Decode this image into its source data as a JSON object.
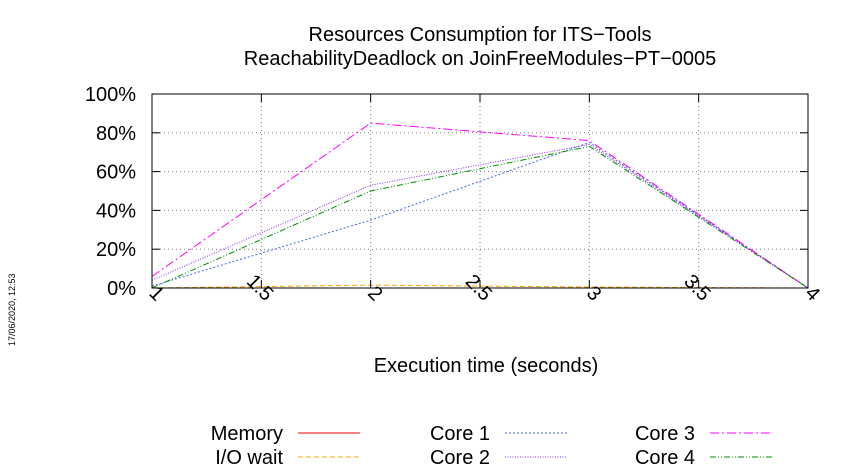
{
  "chart_data": {
    "type": "line",
    "title": [
      "Resources Consumption for ITS−Tools",
      "ReachabilityDeadlock on JoinFreeModules−PT−0005"
    ],
    "xlabel": "Execution time (seconds)",
    "ylabel": "",
    "xlim": [
      1,
      4
    ],
    "ylim": [
      0,
      100
    ],
    "x_ticks": [
      "1",
      "1.5",
      "2",
      "2.5",
      "3",
      "3.5",
      "4"
    ],
    "y_ticks": [
      "0%",
      "20%",
      "40%",
      "60%",
      "80%",
      "100%"
    ],
    "grid": true,
    "legend_position": "bottom",
    "series": [
      {
        "name": "Memory",
        "color": "#ff0000",
        "dash": "solid",
        "x": [
          1,
          2,
          3,
          4
        ],
        "values": [
          0,
          0,
          0,
          0
        ]
      },
      {
        "name": "I/O wait",
        "color": "#ffa500",
        "dash": "dashed",
        "x": [
          1,
          2,
          3,
          4
        ],
        "values": [
          0,
          1.5,
          0.5,
          0
        ]
      },
      {
        "name": "Core 1",
        "color": "#4169e1",
        "dash": "dotted",
        "x": [
          1,
          2,
          3,
          4
        ],
        "values": [
          1,
          35,
          75,
          0
        ]
      },
      {
        "name": "Core 2",
        "color": "#8a2be2",
        "dash": "finedot",
        "x": [
          1,
          2,
          3,
          4
        ],
        "values": [
          4,
          53,
          74,
          0
        ]
      },
      {
        "name": "Core 3",
        "color": "#ff00ff",
        "dash": "dashdot",
        "x": [
          1,
          2,
          3,
          4
        ],
        "values": [
          6,
          85,
          76,
          0
        ]
      },
      {
        "name": "Core 4",
        "color": "#008b00",
        "dash": "dashdotdot",
        "x": [
          1,
          2,
          3,
          4
        ],
        "values": [
          0,
          50,
          73,
          0
        ]
      }
    ]
  },
  "timestamp": "17/06/2020, 12:53"
}
